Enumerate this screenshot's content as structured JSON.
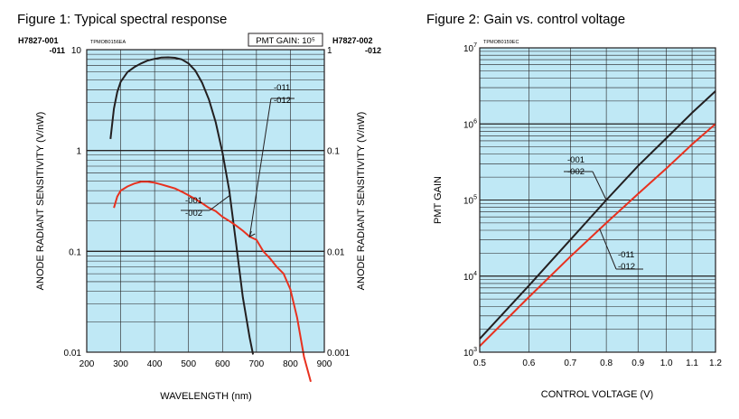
{
  "chart_data": [
    {
      "type": "line",
      "title": "Figure 1: Typical spectral response",
      "ref_code": "TPMOB0156EA",
      "gain_note": "PMT GAIN: 10⁵",
      "left_codes": [
        "H7827-001",
        "-011"
      ],
      "right_codes": [
        "H7827-002",
        "-012"
      ],
      "xlabel": "WAVELENGTH (nm)",
      "ylabel_left": "ANODE RADIANT SENSITIVITY (V/nW)",
      "ylabel_right": "ANODE RADIANT SENSITIVITY (V/nW)",
      "x_ticks": [
        "200",
        "300",
        "400",
        "500",
        "600",
        "700",
        "800",
        "900"
      ],
      "y_ticks_left": [
        "10",
        "1",
        "0.1",
        "0.01"
      ],
      "y_ticks_right": [
        "1",
        "0.1",
        "0.01",
        "0.001"
      ],
      "xlim": [
        200,
        900
      ],
      "ylim_left": [
        0.01,
        10
      ],
      "ylim_right": [
        0.001,
        1
      ],
      "y_scale": "log",
      "grid": true,
      "series": [
        {
          "labels": [
            "-001",
            "-002"
          ],
          "color": "#231f20",
          "x": [
            270,
            280,
            290,
            300,
            320,
            340,
            360,
            380,
            400,
            420,
            440,
            460,
            480,
            500,
            520,
            540,
            560,
            580,
            600,
            620,
            640,
            660,
            680,
            690
          ],
          "y": [
            1.3,
            2.6,
            3.8,
            4.8,
            6.0,
            6.7,
            7.3,
            7.8,
            8.1,
            8.35,
            8.4,
            8.3,
            8.0,
            7.3,
            6.2,
            4.7,
            3.2,
            1.9,
            0.95,
            0.4,
            0.12,
            0.035,
            0.014,
            0.0095
          ]
        },
        {
          "labels": [
            "-011",
            "-012"
          ],
          "color": "#e8311f",
          "x": [
            280,
            290,
            300,
            320,
            340,
            360,
            380,
            400,
            420,
            440,
            460,
            480,
            500,
            520,
            540,
            560,
            580,
            600,
            620,
            640,
            660,
            680,
            700,
            720,
            740,
            760,
            780,
            800,
            820,
            840,
            860
          ],
          "y": [
            0.27,
            0.35,
            0.4,
            0.44,
            0.47,
            0.49,
            0.49,
            0.48,
            0.46,
            0.44,
            0.42,
            0.39,
            0.36,
            0.33,
            0.3,
            0.27,
            0.25,
            0.22,
            0.2,
            0.18,
            0.16,
            0.14,
            0.13,
            0.1,
            0.085,
            0.07,
            0.06,
            0.042,
            0.022,
            0.009,
            0.0051
          ]
        }
      ]
    },
    {
      "type": "line",
      "title": "Figure 2: Gain vs. control voltage",
      "ref_code": "TPMOB0159EC",
      "xlabel": "CONTROL VOLTAGE (V)",
      "ylabel": "PMT GAIN",
      "x_ticks": [
        "0.5",
        "0.6",
        "0.7",
        "0.8",
        "0.9",
        "1.0",
        "1.1",
        "1.2"
      ],
      "y_ticks": [
        {
          "base": "10",
          "exp": "7"
        },
        {
          "base": "10",
          "exp": "6"
        },
        {
          "base": "10",
          "exp": "5"
        },
        {
          "base": "10",
          "exp": "4"
        },
        {
          "base": "10",
          "exp": "3"
        }
      ],
      "xlim": [
        0.5,
        1.2
      ],
      "ylim": [
        1000,
        10000000
      ],
      "x_scale": "log",
      "y_scale": "log",
      "grid": true,
      "series": [
        {
          "labels": [
            "-001",
            "-002"
          ],
          "color": "#231f20",
          "x": [
            0.5,
            0.6,
            0.7,
            0.8,
            0.9,
            1.0,
            1.1,
            1.2
          ],
          "y": [
            1500,
            7500,
            30000,
            100000,
            280000,
            650000,
            1400000,
            2700000
          ]
        },
        {
          "labels": [
            "-011",
            "-012"
          ],
          "color": "#e8311f",
          "x": [
            0.5,
            0.6,
            0.7,
            0.8,
            0.9,
            1.0,
            1.1,
            1.2
          ],
          "y": [
            1200,
            5300,
            18000,
            50000,
            120000,
            260000,
            540000,
            1000000
          ]
        }
      ]
    }
  ]
}
